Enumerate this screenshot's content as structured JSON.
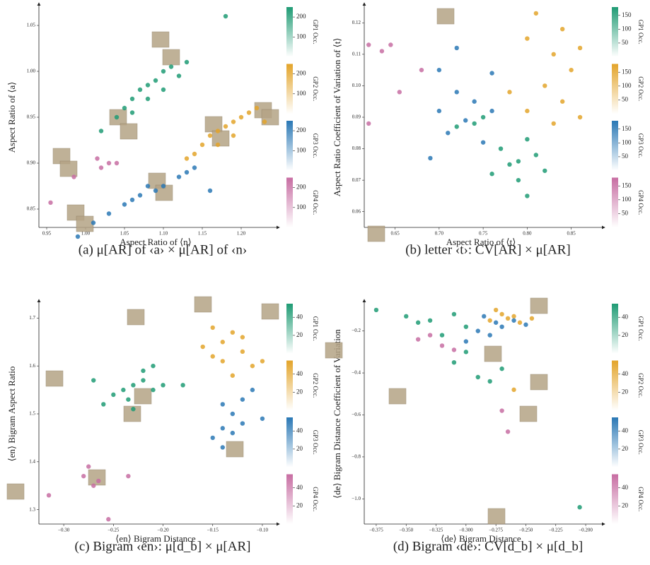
{
  "chart_data": [
    {
      "type": "scatter",
      "caption": "(a) μ[AR] of ‹a› × μ[AR] of ‹n›",
      "xlabel": "Aspect Ratio of ⟨n⟩",
      "ylabel": "Aspect Ratio of ⟨a⟩",
      "xlim": [
        0.94,
        1.24
      ],
      "ylim": [
        0.83,
        1.07
      ],
      "xticks": [
        0.95,
        {
          "value": 1.0,
          "label": "1.00"
        },
        1.05,
        {
          "value": 1.1,
          "label": "1.10"
        },
        1.15,
        {
          "value": 1.2,
          "label": "1.20"
        }
      ],
      "yticks": [
        0.85,
        {
          "value": 0.9,
          "label": "0.90"
        },
        0.95,
        {
          "value": 1.0,
          "label": "1.00"
        },
        1.05
      ],
      "series": [
        {
          "name": "GP1 Occ.",
          "color": "#1f9b74",
          "cbar_lim": [
            0,
            250
          ],
          "cbar_ticks": [
            100,
            200
          ],
          "x": [
            1.02,
            1.04,
            1.05,
            1.06,
            1.07,
            1.08,
            1.09,
            1.1,
            1.11,
            1.12,
            1.08,
            1.1,
            1.13,
            1.06,
            1.18
          ],
          "y": [
            0.935,
            0.95,
            0.96,
            0.97,
            0.98,
            0.985,
            0.99,
            1.0,
            1.005,
            0.995,
            0.97,
            0.98,
            1.01,
            0.955,
            1.06
          ]
        },
        {
          "name": "GP2 Occ.",
          "color": "#e3a42a",
          "cbar_lim": [
            0,
            250
          ],
          "cbar_ticks": [
            100,
            200
          ],
          "x": [
            1.13,
            1.15,
            1.16,
            1.17,
            1.18,
            1.19,
            1.2,
            1.21,
            1.22,
            1.17,
            1.19,
            1.14,
            1.23
          ],
          "y": [
            0.905,
            0.92,
            0.93,
            0.935,
            0.94,
            0.945,
            0.95,
            0.955,
            0.96,
            0.92,
            0.93,
            0.91,
            0.945
          ]
        },
        {
          "name": "GP3 Occ.",
          "color": "#2a78b5",
          "cbar_lim": [
            0,
            250
          ],
          "cbar_ticks": [
            100,
            200
          ],
          "x": [
            0.99,
            1.01,
            1.03,
            1.05,
            1.07,
            1.09,
            1.1,
            1.12,
            1.13,
            1.06,
            1.08,
            1.14,
            1.16
          ],
          "y": [
            0.82,
            0.835,
            0.845,
            0.855,
            0.865,
            0.87,
            0.875,
            0.885,
            0.89,
            0.86,
            0.875,
            0.895,
            0.87
          ]
        },
        {
          "name": "GP4 Occ.",
          "color": "#c76da2",
          "cbar_lim": [
            0,
            250
          ],
          "cbar_ticks": [
            100,
            200
          ],
          "x": [
            0.955,
            1.015,
            1.02,
            1.04,
            0.985,
            1.03
          ],
          "y": [
            0.857,
            0.905,
            0.895,
            0.9,
            0.885,
            0.9
          ]
        }
      ]
    },
    {
      "type": "scatter",
      "caption": "(b) letter ‹t›: CV[AR] × μ[AR]",
      "xlabel": "Aspect Ratio of ⟨t⟩",
      "ylabel": "Aspect Ratio Coefficient of Variation of ⟨t⟩",
      "xlim": [
        0.615,
        0.88
      ],
      "ylim": [
        0.055,
        0.125
      ],
      "xticks": [
        0.65,
        {
          "value": 0.7,
          "label": "0.70"
        },
        0.75,
        {
          "value": 0.8,
          "label": "0.80"
        },
        0.85
      ],
      "yticks": [
        0.06,
        0.07,
        0.08,
        0.09,
        {
          "value": 0.1,
          "label": "0.10"
        },
        0.11,
        0.12
      ],
      "series": [
        {
          "name": "GP1 Occ.",
          "color": "#1f9b74",
          "cbar_lim": [
            0,
            180
          ],
          "cbar_ticks": [
            50,
            100,
            150
          ],
          "x": [
            0.78,
            0.79,
            0.8,
            0.77,
            0.81,
            0.76,
            0.8,
            0.74,
            0.82,
            0.79,
            0.75,
            0.72
          ],
          "y": [
            0.075,
            0.07,
            0.065,
            0.08,
            0.078,
            0.072,
            0.083,
            0.088,
            0.073,
            0.076,
            0.09,
            0.087
          ]
        },
        {
          "name": "GP2 Occ.",
          "color": "#e3a42a",
          "cbar_lim": [
            0,
            180
          ],
          "cbar_ticks": [
            50,
            100,
            150
          ],
          "x": [
            0.81,
            0.84,
            0.8,
            0.83,
            0.85,
            0.82,
            0.84,
            0.86,
            0.8,
            0.83,
            0.78,
            0.86
          ],
          "y": [
            0.123,
            0.118,
            0.115,
            0.11,
            0.105,
            0.1,
            0.095,
            0.09,
            0.092,
            0.088,
            0.098,
            0.112
          ]
        },
        {
          "name": "GP3 Occ.",
          "color": "#2a78b5",
          "cbar_lim": [
            0,
            180
          ],
          "cbar_ticks": [
            50,
            100,
            150
          ],
          "x": [
            0.7,
            0.72,
            0.74,
            0.76,
            0.73,
            0.71,
            0.75,
            0.69,
            0.72,
            0.76,
            0.7
          ],
          "y": [
            0.105,
            0.098,
            0.095,
            0.092,
            0.089,
            0.085,
            0.082,
            0.077,
            0.112,
            0.104,
            0.092
          ]
        },
        {
          "name": "GP4 Occ.",
          "color": "#c76da2",
          "cbar_lim": [
            0,
            180
          ],
          "cbar_ticks": [
            50,
            100,
            150
          ],
          "x": [
            0.62,
            0.635,
            0.645,
            0.655,
            0.68,
            0.62
          ],
          "y": [
            0.113,
            0.111,
            0.113,
            0.098,
            0.105,
            0.088
          ]
        }
      ]
    },
    {
      "type": "scatter",
      "caption": "(c) Bigram ‹en›: μ[d_b] × μ[AR]",
      "xlabel": "⟨en⟩ Bigram Distance",
      "ylabel": "⟨en⟩ Bigram Aspect Ratio",
      "xlim": [
        -0.325,
        -0.09
      ],
      "ylim": [
        1.27,
        1.73
      ],
      "xticks": [
        {
          "value": -0.3,
          "label": "−0.30"
        },
        {
          "value": -0.25,
          "label": "−0.25"
        },
        {
          "value": -0.2,
          "label": "−0.20"
        },
        {
          "value": -0.15,
          "label": "−0.15"
        },
        {
          "value": -0.1,
          "label": "−0.10"
        }
      ],
      "yticks": [
        1.3,
        1.4,
        1.5,
        1.6,
        1.7
      ],
      "series": [
        {
          "name": "GP1 Occ.",
          "color": "#1f9b74",
          "cbar_lim": [
            0,
            55
          ],
          "cbar_ticks": [
            20,
            40
          ],
          "x": [
            -0.24,
            -0.23,
            -0.22,
            -0.235,
            -0.21,
            -0.25,
            -0.22,
            -0.2,
            -0.26,
            -0.23,
            -0.21,
            -0.18,
            -0.27
          ],
          "y": [
            1.55,
            1.56,
            1.57,
            1.53,
            1.55,
            1.54,
            1.59,
            1.56,
            1.52,
            1.51,
            1.6,
            1.56,
            1.57
          ]
        },
        {
          "name": "GP2 Occ.",
          "color": "#e3a42a",
          "cbar_lim": [
            0,
            55
          ],
          "cbar_ticks": [
            20,
            40
          ],
          "x": [
            -0.15,
            -0.14,
            -0.13,
            -0.12,
            -0.14,
            -0.11,
            -0.15,
            -0.13,
            -0.12,
            -0.16,
            -0.1
          ],
          "y": [
            1.68,
            1.65,
            1.67,
            1.63,
            1.61,
            1.6,
            1.62,
            1.58,
            1.66,
            1.64,
            1.61
          ]
        },
        {
          "name": "GP3 Occ.",
          "color": "#2a78b5",
          "cbar_lim": [
            0,
            55
          ],
          "cbar_ticks": [
            20,
            40
          ],
          "x": [
            -0.15,
            -0.14,
            -0.13,
            -0.12,
            -0.14,
            -0.11,
            -0.13,
            -0.12,
            -0.1,
            -0.14
          ],
          "y": [
            1.45,
            1.47,
            1.46,
            1.48,
            1.52,
            1.55,
            1.5,
            1.53,
            1.49,
            1.43
          ]
        },
        {
          "name": "GP4 Occ.",
          "color": "#c76da2",
          "cbar_lim": [
            0,
            55
          ],
          "cbar_ticks": [
            20,
            40
          ],
          "x": [
            -0.315,
            -0.28,
            -0.275,
            -0.265,
            -0.27,
            -0.255,
            -0.235
          ],
          "y": [
            1.33,
            1.37,
            1.39,
            1.36,
            1.35,
            1.28,
            1.37
          ]
        }
      ]
    },
    {
      "type": "scatter",
      "caption": "(d) Bigram ‹de›: CV[d_b] × μ[d_b]",
      "xlabel": "⟨de⟩ Bigram Distance",
      "ylabel": "⟨de⟩ Bigram Distance Coefficient of Variation",
      "xlim": [
        -0.385,
        -0.19
      ],
      "ylim": [
        -1.12,
        -0.07
      ],
      "xticks": [
        {
          "value": -0.375,
          "label": "−0.375"
        },
        {
          "value": -0.35,
          "label": "−0.350"
        },
        {
          "value": -0.325,
          "label": "−0.325"
        },
        {
          "value": -0.3,
          "label": "−0.300"
        },
        {
          "value": -0.275,
          "label": "−0.275"
        },
        {
          "value": -0.25,
          "label": "−0.250"
        },
        {
          "value": -0.225,
          "label": "−0.225"
        },
        {
          "value": -0.2,
          "label": "−0.200"
        }
      ],
      "yticks": [
        {
          "value": -1.0,
          "label": "−1.0"
        },
        {
          "value": -0.8,
          "label": "−0.8"
        },
        {
          "value": -0.6,
          "label": "−0.6"
        },
        {
          "value": -0.4,
          "label": "−0.4"
        },
        {
          "value": -0.2,
          "label": "−0.2"
        }
      ],
      "series": [
        {
          "name": "GP1 Occ.",
          "color": "#1f9b74",
          "cbar_lim": [
            0,
            55
          ],
          "cbar_ticks": [
            20,
            40
          ],
          "x": [
            -0.375,
            -0.35,
            -0.33,
            -0.31,
            -0.3,
            -0.32,
            -0.3,
            -0.31,
            -0.29,
            -0.28,
            -0.34,
            -0.27,
            -0.205
          ],
          "y": [
            -0.1,
            -0.13,
            -0.15,
            -0.12,
            -0.18,
            -0.22,
            -0.3,
            -0.35,
            -0.42,
            -0.44,
            -0.16,
            -0.38,
            -1.04
          ]
        },
        {
          "name": "GP2 Occ.",
          "color": "#e3a42a",
          "cbar_lim": [
            0,
            55
          ],
          "cbar_ticks": [
            20,
            40
          ],
          "x": [
            -0.27,
            -0.265,
            -0.26,
            -0.28,
            -0.255,
            -0.275,
            -0.245,
            -0.26
          ],
          "y": [
            -0.12,
            -0.14,
            -0.13,
            -0.15,
            -0.16,
            -0.1,
            -0.14,
            -0.48
          ]
        },
        {
          "name": "GP3 Occ.",
          "color": "#2a78b5",
          "cbar_lim": [
            0,
            55
          ],
          "cbar_ticks": [
            20,
            40
          ],
          "x": [
            -0.285,
            -0.275,
            -0.26,
            -0.29,
            -0.27,
            -0.3,
            -0.25,
            -0.28
          ],
          "y": [
            -0.13,
            -0.16,
            -0.15,
            -0.2,
            -0.18,
            -0.25,
            -0.17,
            -0.22
          ]
        },
        {
          "name": "GP4 Occ.",
          "color": "#c76da2",
          "cbar_lim": [
            0,
            55
          ],
          "cbar_ticks": [
            20,
            40
          ],
          "x": [
            -0.33,
            -0.32,
            -0.34,
            -0.27,
            -0.265,
            -0.31
          ],
          "y": [
            -0.22,
            -0.27,
            -0.24,
            -0.58,
            -0.68,
            -0.29
          ]
        }
      ]
    }
  ]
}
